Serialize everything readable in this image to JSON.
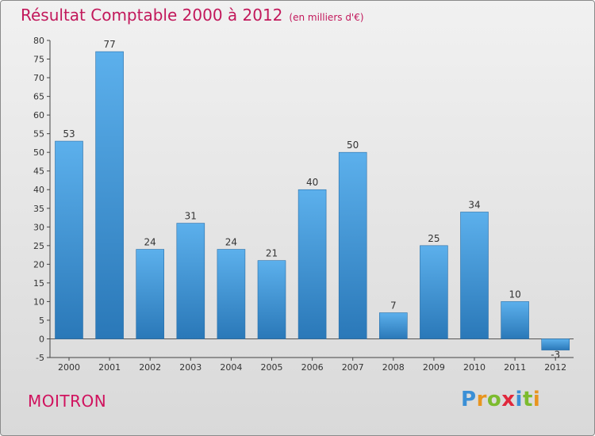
{
  "title": "Résultat Comptable 2000 à 2012",
  "unit_note": "(en milliers d'€)",
  "commune": "MOITRON",
  "brand": {
    "name": "Proxiti",
    "letter_colors": [
      "#3a8fd6",
      "#e8951f",
      "#7cbb2e",
      "#e0283c",
      "#3a8fd6",
      "#7cbb2e",
      "#e8951f"
    ]
  },
  "colors": {
    "title": "#c2185b",
    "bar_light": "#5cb0ec",
    "bar_dark": "#2a78b8"
  },
  "chart_data": {
    "type": "bar",
    "categories": [
      "2000",
      "2001",
      "2002",
      "2003",
      "2004",
      "2005",
      "2006",
      "2007",
      "2008",
      "2009",
      "2010",
      "2011",
      "2012"
    ],
    "values": [
      53,
      77,
      24,
      31,
      24,
      21,
      40,
      50,
      7,
      25,
      34,
      10,
      -3
    ],
    "ylim": [
      -5,
      80
    ],
    "yticks": [
      -5,
      0,
      5,
      10,
      15,
      20,
      25,
      30,
      35,
      40,
      45,
      50,
      55,
      60,
      65,
      70,
      75,
      80
    ],
    "grid": false,
    "legend": "none"
  }
}
